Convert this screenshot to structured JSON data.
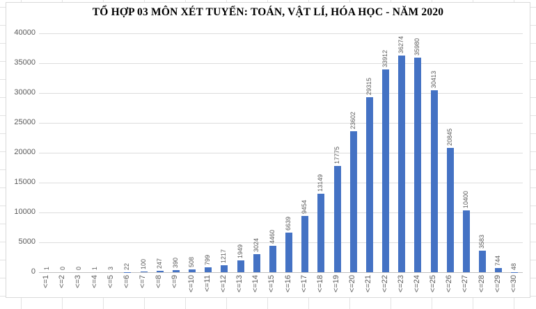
{
  "spreadsheet": {
    "cell_grid_color": "#e2e2e2",
    "chart_border_color": "#d9d9d9"
  },
  "chart_data": {
    "type": "bar",
    "title": "TỔ HỢP 03 MÔN XÉT TUYỂN: TOÁN, VẬT LÍ, HÓA HỌC - NĂM 2020",
    "categories": [
      "<=1",
      "<=2",
      "<=3",
      "<=4",
      "<=5",
      "<=6",
      "<=7",
      "<=8",
      "<=9",
      "<=10",
      "<=11",
      "<=12",
      "<=13",
      "<=14",
      "<=15",
      "<=16",
      "<=17",
      "<=18",
      "<=19",
      "<=20",
      "<=21",
      "<=22",
      "<=23",
      "<=24",
      "<=25",
      "<=26",
      "<=27",
      "<=28",
      "<=29",
      "<=30"
    ],
    "values": [
      1,
      0,
      0,
      1,
      3,
      22,
      100,
      247,
      390,
      508,
      799,
      1217,
      1949,
      3024,
      4460,
      6639,
      9454,
      13149,
      17775,
      23602,
      29315,
      33912,
      36274,
      35980,
      30413,
      20845,
      10400,
      3583,
      744,
      48
    ],
    "data_labels_rotated": true,
    "xlabel": "",
    "ylabel": "",
    "ylim": [
      0,
      40000
    ],
    "ytick_step": 5000,
    "yticks": [
      0,
      5000,
      10000,
      15000,
      20000,
      25000,
      30000,
      35000,
      40000
    ],
    "grid": true,
    "legend_position": "none",
    "bar_color": "#4472C4",
    "gridline_color": "#dcdcdc",
    "axis_line_color": "#bfbfbf",
    "label_color": "#595959"
  }
}
